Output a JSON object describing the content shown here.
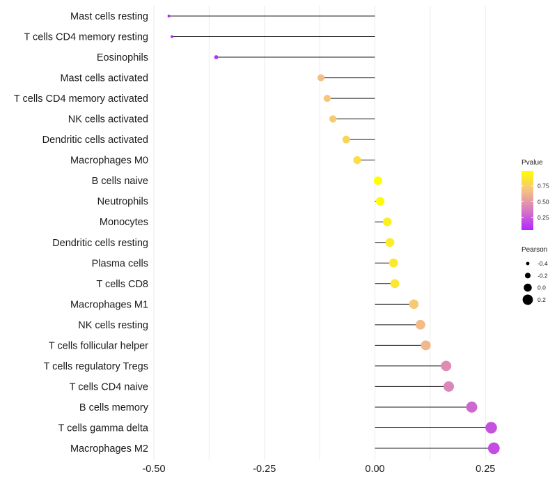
{
  "chart_data": {
    "type": "lollipop",
    "orientation": "horizontal",
    "title": "",
    "xlabel": "",
    "ylabel": "",
    "xlim": [
      -0.52,
      0.28
    ],
    "x_ticks": [
      -0.5,
      -0.25,
      0.0,
      0.25
    ],
    "x_tick_labels": [
      "-0.50",
      "-0.25",
      "0.00",
      "0.25"
    ],
    "grid": "vertical",
    "categories": [
      "Mast cells resting",
      "T cells CD4 memory resting",
      "Eosinophils",
      "Mast cells activated",
      "T cells CD4 memory activated",
      "NK cells activated",
      "Dendritic cells activated",
      "Macrophages M0",
      "B cells naive",
      "Neutrophils",
      "Monocytes",
      "Dendritic cells resting",
      "Plasma cells",
      "T cells CD8",
      "Macrophages M1",
      "NK cells resting",
      "T cells follicular helper",
      "T cells regulatory  Tregs",
      "T cells CD4 naive",
      "B cells memory",
      "T cells gamma delta",
      "Macrophages M2"
    ],
    "pearson": [
      -0.466,
      -0.459,
      -0.359,
      -0.122,
      -0.108,
      -0.095,
      -0.065,
      -0.04,
      0.007,
      0.012,
      0.028,
      0.034,
      0.042,
      0.045,
      0.088,
      0.103,
      0.115,
      0.161,
      0.167,
      0.219,
      0.263,
      0.269
    ],
    "pvalue": [
      0.01,
      0.02,
      0.08,
      0.66,
      0.7,
      0.72,
      0.78,
      0.82,
      0.99,
      0.97,
      0.91,
      0.9,
      0.88,
      0.87,
      0.72,
      0.65,
      0.64,
      0.45,
      0.42,
      0.3,
      0.22,
      0.2
    ],
    "color_legend": {
      "title": "Pvalue",
      "range": [
        0.05,
        0.99
      ],
      "ticks": [
        0.25,
        0.5,
        0.75
      ],
      "tick_labels": [
        "0.25",
        "0.50",
        "0.75"
      ],
      "colors": [
        "#b026ff",
        "#d778c4",
        "#f5c184",
        "#ffff00"
      ]
    },
    "size_legend": {
      "title": "Pearson",
      "values": [
        -0.4,
        -0.2,
        0.0,
        0.2
      ],
      "labels": [
        "-0.4",
        "-0.2",
        "0.0",
        "0.2"
      ]
    }
  }
}
